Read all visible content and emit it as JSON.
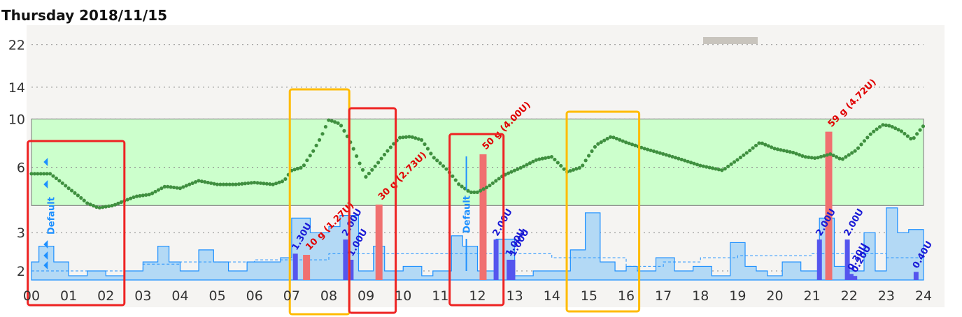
{
  "page_title": "Thursday 2018/11/15",
  "chart_data": {
    "type": "line",
    "title": "Thursday 2018/11/15",
    "x_ticks": [
      "00",
      "01",
      "02",
      "03",
      "04",
      "05",
      "06",
      "07",
      "08",
      "09",
      "10",
      "11",
      "12",
      "13",
      "14",
      "15",
      "16",
      "17",
      "18",
      "19",
      "20",
      "21",
      "22",
      "23",
      "24"
    ],
    "y_ticks": [
      2,
      3,
      6,
      10,
      14,
      22
    ],
    "y_scale": "log",
    "ylim": [
      1.7,
      24
    ],
    "xlim": [
      0,
      24
    ],
    "target_range": [
      4,
      10
    ],
    "colors": {
      "target_fill": "#ccffcc",
      "glucose": "#3f8f3f",
      "basal_fill": "#b3d9f5",
      "basal_line": "#1e90ff",
      "carbs": "#f07070",
      "bolus": "#5555ee",
      "highlight_red": "#ee2222",
      "highlight_orange": "#ffbb00"
    },
    "glucose_series": {
      "name": "",
      "x": [
        0,
        0.5,
        1,
        1.5,
        1.8,
        2.2,
        2.8,
        3.2,
        3.6,
        4.0,
        4.5,
        5.0,
        5.5,
        6.0,
        6.5,
        6.8,
        7.0,
        7.3,
        7.6,
        7.8,
        8.0,
        8.3,
        8.6,
        8.8,
        9.0,
        9.3,
        9.6,
        9.9,
        10.2,
        10.5,
        10.8,
        11.2,
        11.5,
        11.8,
        12.0,
        12.3,
        12.7,
        13.2,
        13.6,
        14.0,
        14.4,
        14.8,
        15.2,
        15.6,
        16.0,
        16.5,
        17.0,
        17.5,
        18.0,
        18.6,
        19.0,
        19.3,
        19.6,
        20.0,
        20.5,
        20.8,
        21.1,
        21.5,
        21.8,
        22.2,
        22.6,
        22.9,
        23.1,
        23.4,
        23.7,
        24.0
      ],
      "y": [
        5.6,
        5.6,
        4.8,
        4.1,
        3.9,
        4.0,
        4.4,
        4.5,
        4.9,
        4.8,
        5.2,
        5.0,
        5.0,
        5.1,
        5.0,
        5.2,
        5.8,
        6.0,
        7.2,
        8.3,
        9.9,
        9.5,
        7.7,
        6.4,
        5.4,
        6.2,
        7.2,
        8.2,
        8.3,
        8.0,
        6.7,
        5.8,
        5.0,
        4.6,
        4.6,
        4.9,
        5.5,
        6.0,
        6.5,
        6.7,
        5.7,
        6.0,
        7.6,
        8.3,
        7.8,
        7.3,
        6.9,
        6.5,
        6.1,
        5.8,
        6.5,
        7.1,
        7.8,
        7.3,
        7.0,
        6.7,
        6.6,
        6.9,
        6.5,
        7.2,
        8.6,
        9.4,
        9.3,
        8.8,
        8.0,
        9.3
      ]
    },
    "carbs": [
      {
        "x": 7.4,
        "value": 10,
        "label": "10 g (1.27U)"
      },
      {
        "x": 9.35,
        "value": 30,
        "label": "30 g (2.73U)"
      },
      {
        "x": 12.15,
        "value": 50,
        "label": "50 g (4.00U)"
      },
      {
        "x": 21.45,
        "value": 59,
        "label": "59 g (4.72U)"
      }
    ],
    "boluses": [
      {
        "x": 7.1,
        "units": 1.3,
        "label": "1.30U"
      },
      {
        "x": 8.45,
        "units": 2.0,
        "label": "2.00U"
      },
      {
        "x": 8.6,
        "units": 1.0,
        "label": "1.00U"
      },
      {
        "x": 12.5,
        "units": 2.0,
        "label": "2.00U"
      },
      {
        "x": 12.85,
        "units": 1.0,
        "label": "1.00U"
      },
      {
        "x": 12.95,
        "units": 1.0,
        "label": "1.00U"
      },
      {
        "x": 21.2,
        "units": 2.0,
        "label": "2.00U"
      },
      {
        "x": 21.95,
        "units": 2.0,
        "label": "2.00U"
      },
      {
        "x": 22.05,
        "units": 0.3,
        "label": "0.30U"
      },
      {
        "x": 22.15,
        "units": 0.2,
        "label": "0.20U"
      },
      {
        "x": 23.8,
        "units": 0.4,
        "label": "0.40U"
      }
    ],
    "basal_rate": {
      "x": [
        0,
        0.2,
        0.6,
        1.0,
        1.5,
        2.0,
        2.5,
        3.0,
        3.4,
        3.7,
        4.0,
        4.5,
        4.9,
        5.3,
        5.8,
        6.2,
        6.7,
        7.0,
        7.5,
        8.0,
        8.3,
        8.8,
        9.2,
        9.5,
        10.0,
        10.5,
        10.8,
        11.3,
        11.6,
        12.0,
        12.5,
        13.0,
        13.5,
        14.0,
        14.5,
        14.9,
        15.3,
        15.7,
        16.0,
        16.3,
        16.8,
        17.3,
        17.8,
        18.3,
        18.8,
        19.2,
        19.5,
        19.8,
        20.2,
        20.7,
        21.2,
        21.6,
        22.0,
        22.4,
        22.7,
        23.0,
        23.3,
        23.6,
        24.0
      ],
      "y": [
        2.2,
        2.6,
        2.2,
        1.9,
        2.0,
        1.9,
        2.0,
        2.2,
        2.6,
        2.2,
        2.0,
        2.5,
        2.2,
        2.0,
        2.2,
        2.2,
        2.3,
        3.5,
        3.0,
        3.2,
        3.6,
        2.0,
        2.6,
        2.0,
        2.1,
        1.9,
        2.0,
        2.9,
        2.6,
        2.0,
        2.8,
        1.9,
        2.0,
        2.0,
        2.5,
        3.7,
        2.2,
        2.0,
        2.1,
        2.0,
        2.3,
        2.0,
        2.1,
        1.9,
        2.7,
        2.1,
        2.0,
        1.9,
        2.2,
        2.0,
        3.5,
        2.1,
        2.0,
        3.0,
        2.0,
        3.9,
        3.0,
        3.1,
        3.0
      ]
    },
    "basal_profile_default": {
      "x": [
        0,
        0.3,
        3.0,
        4.0,
        6.0,
        7.0,
        8.0,
        9.0,
        10.0,
        14.0,
        16.0,
        17.0,
        18.0,
        19.0,
        20.0,
        21.0,
        22.0,
        23.0,
        24.0
      ],
      "y": [
        2.0,
        2.0,
        2.15,
        2.2,
        2.25,
        2.25,
        2.4,
        2.4,
        2.4,
        2.3,
        2.1,
        2.2,
        2.3,
        2.35,
        2.35,
        2.4,
        2.4,
        2.3,
        2.2
      ]
    },
    "profile_switches": [
      {
        "x": 0.25,
        "label": "Default"
      },
      {
        "x": 11.7,
        "label": "Default"
      }
    ],
    "highlight_boxes": [
      {
        "x0": -0.1,
        "x1": 2.5,
        "color": "red"
      },
      {
        "x0": 6.95,
        "x1": 8.55,
        "color": "orange"
      },
      {
        "x0": 8.55,
        "x1": 9.8,
        "color": "red"
      },
      {
        "x0": 11.25,
        "x1": 12.7,
        "color": "red"
      },
      {
        "x0": 14.4,
        "x1": 16.35,
        "color": "orange"
      }
    ]
  }
}
